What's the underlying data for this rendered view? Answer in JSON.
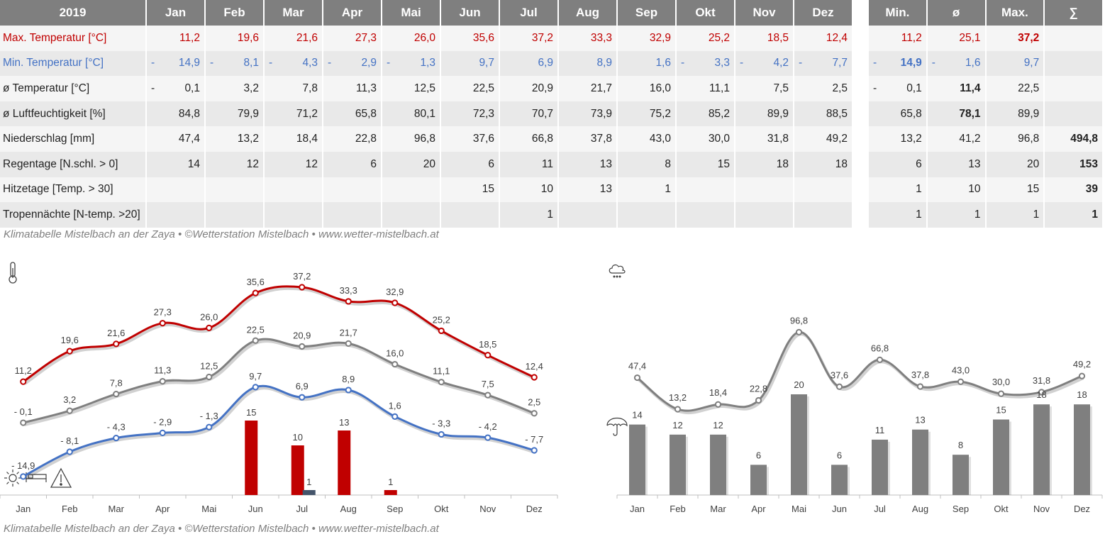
{
  "table": {
    "year": "2019",
    "months": [
      "Jan",
      "Feb",
      "Mar",
      "Apr",
      "Mai",
      "Jun",
      "Jul",
      "Aug",
      "Sep",
      "Okt",
      "Nov",
      "Dez"
    ],
    "summary_headers": [
      "Min.",
      "ø",
      "Max.",
      "∑"
    ],
    "rows": [
      {
        "label": "Max. Temperatur [°C]",
        "style": "red",
        "values": [
          {
            "v": "11,2"
          },
          {
            "v": "19,6"
          },
          {
            "v": "21,6"
          },
          {
            "v": "27,3"
          },
          {
            "v": "26,0"
          },
          {
            "v": "35,6"
          },
          {
            "v": "37,2"
          },
          {
            "v": "33,3"
          },
          {
            "v": "32,9"
          },
          {
            "v": "25,2"
          },
          {
            "v": "18,5"
          },
          {
            "v": "12,4"
          }
        ],
        "summary": [
          {
            "v": "11,2"
          },
          {
            "v": "25,1"
          },
          {
            "v": "37,2",
            "bold": true
          },
          {
            "v": ""
          }
        ]
      },
      {
        "label": "Min. Temperatur [°C]",
        "style": "blue",
        "values": [
          {
            "v": "14,9",
            "neg": true
          },
          {
            "v": "8,1",
            "neg": true
          },
          {
            "v": "4,3",
            "neg": true
          },
          {
            "v": "2,9",
            "neg": true
          },
          {
            "v": "1,3",
            "neg": true
          },
          {
            "v": "9,7"
          },
          {
            "v": "6,9"
          },
          {
            "v": "8,9"
          },
          {
            "v": "1,6"
          },
          {
            "v": "3,3",
            "neg": true
          },
          {
            "v": "4,2",
            "neg": true
          },
          {
            "v": "7,7",
            "neg": true
          }
        ],
        "summary": [
          {
            "v": "14,9",
            "neg": true,
            "bold": true
          },
          {
            "v": "1,6",
            "neg": true
          },
          {
            "v": "9,7"
          },
          {
            "v": ""
          }
        ]
      },
      {
        "label": "ø Temperatur [°C]",
        "style": "",
        "values": [
          {
            "v": "0,1",
            "neg": true
          },
          {
            "v": "3,2"
          },
          {
            "v": "7,8"
          },
          {
            "v": "11,3"
          },
          {
            "v": "12,5"
          },
          {
            "v": "22,5"
          },
          {
            "v": "20,9"
          },
          {
            "v": "21,7"
          },
          {
            "v": "16,0"
          },
          {
            "v": "11,1"
          },
          {
            "v": "7,5"
          },
          {
            "v": "2,5"
          }
        ],
        "summary": [
          {
            "v": "0,1",
            "neg": true
          },
          {
            "v": "11,4",
            "bold": true
          },
          {
            "v": "22,5"
          },
          {
            "v": ""
          }
        ]
      },
      {
        "label": "ø Luftfeuchtigkeit [%]",
        "style": "",
        "values": [
          {
            "v": "84,8"
          },
          {
            "v": "79,9"
          },
          {
            "v": "71,2"
          },
          {
            "v": "65,8"
          },
          {
            "v": "80,1"
          },
          {
            "v": "72,3"
          },
          {
            "v": "70,7"
          },
          {
            "v": "73,9"
          },
          {
            "v": "75,2"
          },
          {
            "v": "85,2"
          },
          {
            "v": "89,9"
          },
          {
            "v": "88,5"
          }
        ],
        "summary": [
          {
            "v": "65,8"
          },
          {
            "v": "78,1",
            "bold": true
          },
          {
            "v": "89,9"
          },
          {
            "v": ""
          }
        ]
      },
      {
        "label": "Niederschlag [mm]",
        "style": "",
        "values": [
          {
            "v": "47,4"
          },
          {
            "v": "13,2"
          },
          {
            "v": "18,4"
          },
          {
            "v": "22,8"
          },
          {
            "v": "96,8"
          },
          {
            "v": "37,6"
          },
          {
            "v": "66,8"
          },
          {
            "v": "37,8"
          },
          {
            "v": "43,0"
          },
          {
            "v": "30,0"
          },
          {
            "v": "31,8"
          },
          {
            "v": "49,2"
          }
        ],
        "summary": [
          {
            "v": "13,2"
          },
          {
            "v": "41,2"
          },
          {
            "v": "96,8"
          },
          {
            "v": "494,8",
            "bold": true
          }
        ]
      },
      {
        "label": "Regentage [N.schl. > 0]",
        "style": "",
        "values": [
          {
            "v": "14"
          },
          {
            "v": "12"
          },
          {
            "v": "12"
          },
          {
            "v": "6"
          },
          {
            "v": "20"
          },
          {
            "v": "6"
          },
          {
            "v": "11"
          },
          {
            "v": "13"
          },
          {
            "v": "8"
          },
          {
            "v": "15"
          },
          {
            "v": "18"
          },
          {
            "v": "18"
          }
        ],
        "summary": [
          {
            "v": "6"
          },
          {
            "v": "13"
          },
          {
            "v": "20"
          },
          {
            "v": "153",
            "bold": true
          }
        ]
      },
      {
        "label": "Hitzetage [Temp. > 30]",
        "style": "",
        "values": [
          {
            "v": ""
          },
          {
            "v": ""
          },
          {
            "v": ""
          },
          {
            "v": ""
          },
          {
            "v": ""
          },
          {
            "v": "15"
          },
          {
            "v": "10"
          },
          {
            "v": "13"
          },
          {
            "v": "1"
          },
          {
            "v": ""
          },
          {
            "v": ""
          },
          {
            "v": ""
          }
        ],
        "summary": [
          {
            "v": "1"
          },
          {
            "v": "10"
          },
          {
            "v": "15"
          },
          {
            "v": "39",
            "bold": true
          }
        ]
      },
      {
        "label": "Tropennächte [N-temp. >20]",
        "style": "",
        "values": [
          {
            "v": ""
          },
          {
            "v": ""
          },
          {
            "v": ""
          },
          {
            "v": ""
          },
          {
            "v": ""
          },
          {
            "v": ""
          },
          {
            "v": "1"
          },
          {
            "v": ""
          },
          {
            "v": ""
          },
          {
            "v": ""
          },
          {
            "v": ""
          },
          {
            "v": ""
          }
        ],
        "summary": [
          {
            "v": "1"
          },
          {
            "v": "1"
          },
          {
            "v": "1"
          },
          {
            "v": "1",
            "bold": true
          }
        ]
      }
    ],
    "caption": "Klimatabelle Mistelbach an der Zaya  •  ©Wetterstation Mistelbach  •  www.wetter-mistelbach.at"
  },
  "bottom_caption": "Klimatabelle Mistelbach an der Zaya  •  ©Wetterstation Mistelbach  •  www.wetter-mistelbach.at",
  "colors": {
    "max": "#c00000",
    "min": "#4472c4",
    "avg": "#7f7f7f",
    "hitze": "#c00000",
    "tropen": "#44546a",
    "rain": "#7f7f7f"
  },
  "icons": {
    "temperature": "thermometer-icon",
    "cloud": "cloud-rain-icon",
    "umbrella": "umbrella-icon",
    "sun": "sun-icon",
    "bed": "bed-icon",
    "warning": "warning-icon"
  },
  "chart_data": [
    {
      "type": "line",
      "categories": [
        "Jan",
        "Feb",
        "Mar",
        "Apr",
        "Mai",
        "Jun",
        "Jul",
        "Aug",
        "Sep",
        "Okt",
        "Nov",
        "Dez"
      ],
      "series": [
        {
          "name": "Max. Temperatur [°C]",
          "values": [
            11.2,
            19.6,
            21.6,
            27.3,
            26.0,
            35.6,
            37.2,
            33.3,
            32.9,
            25.2,
            18.5,
            12.4
          ],
          "labels": [
            "11,2",
            "19,6",
            "21,6",
            "27,3",
            "26,0",
            "35,6",
            "37,2",
            "33,3",
            "32,9",
            "25,2",
            "18,5",
            "12,4"
          ]
        },
        {
          "name": "ø Temperatur [°C]",
          "values": [
            -0.1,
            3.2,
            7.8,
            11.3,
            12.5,
            22.5,
            20.9,
            21.7,
            16.0,
            11.1,
            7.5,
            2.5
          ],
          "labels": [
            "- 0,1",
            "3,2",
            "7,8",
            "11,3",
            "12,5",
            "22,5",
            "20,9",
            "21,7",
            "16,0",
            "11,1",
            "7,5",
            "2,5"
          ]
        },
        {
          "name": "Min. Temperatur [°C]",
          "values": [
            -14.9,
            -8.1,
            -4.3,
            -2.9,
            -1.3,
            9.7,
            6.9,
            8.9,
            1.6,
            -3.3,
            -4.2,
            -7.7
          ],
          "labels": [
            "- 14,9",
            "- 8,1",
            "- 4,3",
            "- 2,9",
            "- 1,3",
            "9,7",
            "6,9",
            "8,9",
            "1,6",
            "- 3,3",
            "- 4,2",
            "- 7,7"
          ]
        }
      ],
      "bars": [
        {
          "name": "Hitzetage [Temp. > 30]",
          "values": [
            0,
            0,
            0,
            0,
            0,
            15,
            10,
            13,
            1,
            0,
            0,
            0
          ],
          "labels": [
            "",
            "",
            "",
            "",
            "",
            "15",
            "10",
            "13",
            "1",
            "",
            "",
            ""
          ]
        },
        {
          "name": "Tropennächte [N-temp. >20]",
          "values": [
            0,
            0,
            0,
            0,
            0,
            0,
            1,
            0,
            0,
            0,
            0,
            0
          ],
          "labels": [
            "",
            "",
            "",
            "",
            "",
            "",
            "1",
            "",
            "",
            "",
            "",
            ""
          ]
        }
      ]
    },
    {
      "type": "bar",
      "categories": [
        "Jan",
        "Feb",
        "Mar",
        "Apr",
        "Mai",
        "Jun",
        "Jul",
        "Aug",
        "Sep",
        "Okt",
        "Nov",
        "Dez"
      ],
      "series": [
        {
          "name": "Niederschlag [mm]",
          "values": [
            47.4,
            13.2,
            18.4,
            22.8,
            96.8,
            37.6,
            66.8,
            37.8,
            43.0,
            30.0,
            31.8,
            49.2
          ],
          "labels": [
            "47,4",
            "13,2",
            "18,4",
            "22,8",
            "96,8",
            "37,6",
            "66,8",
            "37,8",
            "43,0",
            "30,0",
            "31,8",
            "49,2"
          ]
        },
        {
          "name": "Regentage [N.schl. > 0]",
          "values": [
            14,
            12,
            12,
            6,
            20,
            6,
            11,
            13,
            8,
            15,
            18,
            18
          ],
          "labels": [
            "14",
            "12",
            "12",
            "6",
            "20",
            "6",
            "11",
            "13",
            "8",
            "15",
            "18",
            "18"
          ]
        }
      ]
    }
  ]
}
